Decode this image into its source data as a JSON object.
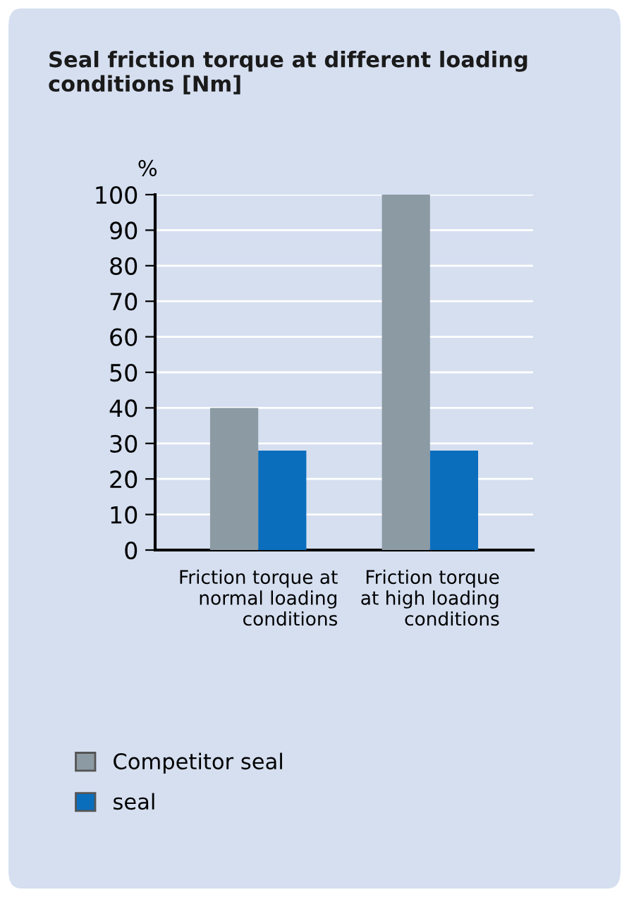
{
  "chart_data": {
    "type": "bar",
    "title": "Seal friction torque at different loading conditions [Nm]",
    "ylabel": "%",
    "categories": [
      "Friction torque at\nnormal loading\nconditions",
      "Friction torque\nat high loading\nconditions"
    ],
    "series": [
      {
        "name": "Competitor seal",
        "color": "#8c9aa3",
        "values": [
          40,
          100
        ]
      },
      {
        "name": "seal",
        "color": "#0a6ebd",
        "values": [
          28,
          28
        ]
      }
    ],
    "ylim": [
      0,
      100
    ],
    "yticks": [
      0,
      10,
      20,
      30,
      40,
      50,
      60,
      70,
      80,
      90,
      100
    ],
    "grid": "y",
    "legend": "bottom"
  }
}
